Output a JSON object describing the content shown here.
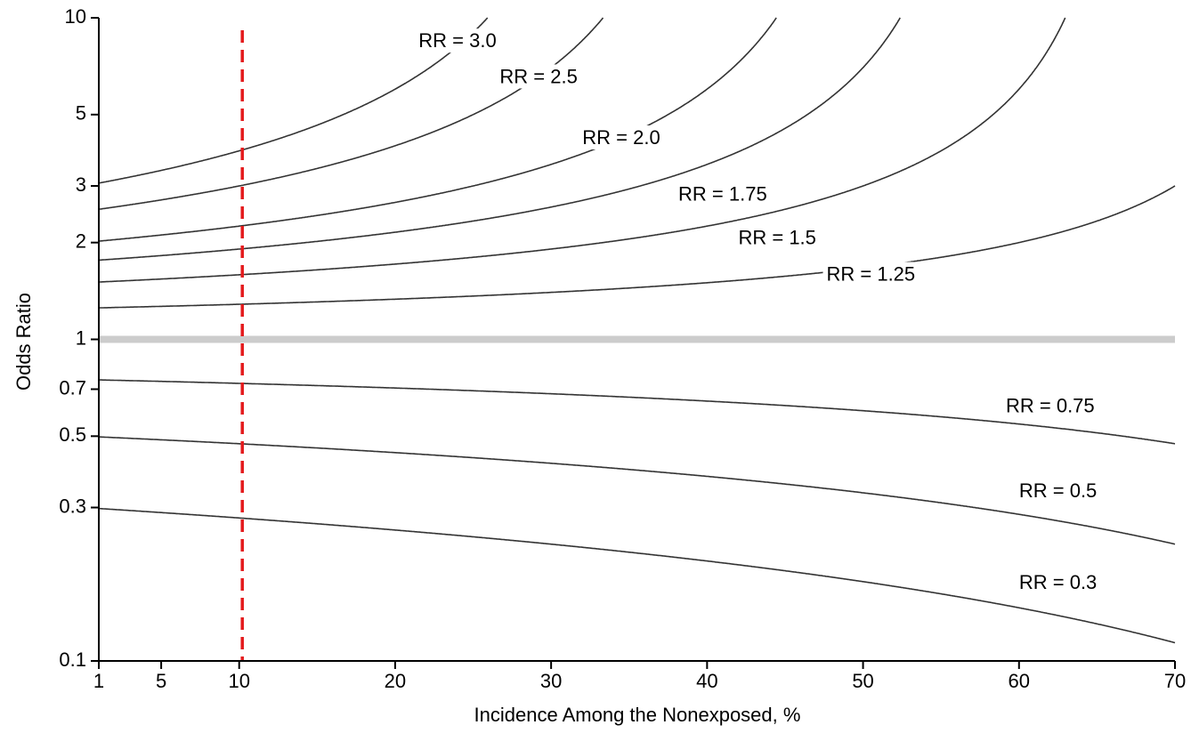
{
  "chart_data": {
    "type": "line",
    "title": "",
    "xlabel": "Incidence Among the Nonexposed, %",
    "ylabel": "Odds Ratio",
    "xlim": [
      1,
      70
    ],
    "ylim": [
      0.1,
      10
    ],
    "yscale": "log",
    "x_ticks": [
      1,
      5,
      10,
      20,
      30,
      40,
      50,
      60,
      70
    ],
    "y_ticks": [
      0.1,
      0.3,
      0.5,
      0.7,
      1,
      2,
      3,
      5,
      10
    ],
    "y_tick_labels": [
      "0.1",
      "0.3",
      "0.5",
      "0.7",
      "1",
      "2",
      "3",
      "5",
      "10"
    ],
    "grid": false,
    "legend": "none (curves labeled directly)",
    "series": [
      {
        "name": "RR = 3.0",
        "rr": 3.0,
        "x": [
          1,
          5,
          10,
          15,
          20,
          25,
          26.5
        ],
        "y": [
          3.06,
          3.35,
          3.86,
          4.6,
          5.67,
          8.0,
          10
        ]
      },
      {
        "name": "RR = 2.5",
        "rr": 2.5,
        "x": [
          1,
          5,
          10,
          20,
          30,
          33.5
        ],
        "y": [
          2.54,
          2.71,
          3.0,
          3.86,
          6.0,
          10
        ]
      },
      {
        "name": "RR = 2.0",
        "rr": 2.0,
        "x": [
          1,
          10,
          20,
          30,
          40,
          44.5
        ],
        "y": [
          2.02,
          2.25,
          2.67,
          3.5,
          6.0,
          10
        ]
      },
      {
        "name": "RR = 1.75",
        "rr": 1.75,
        "x": [
          1,
          10,
          20,
          30,
          40,
          50,
          52.5
        ],
        "y": [
          1.76,
          1.91,
          2.15,
          2.55,
          3.35,
          6.25,
          10
        ]
      },
      {
        "name": "RR = 1.5",
        "rr": 1.5,
        "x": [
          1,
          10,
          20,
          30,
          40,
          50,
          60,
          63.5
        ],
        "y": [
          1.51,
          1.59,
          1.71,
          1.91,
          2.25,
          3.0,
          6.0,
          10
        ]
      },
      {
        "name": "RR = 1.25",
        "rr": 1.25,
        "x": [
          1,
          10,
          20,
          30,
          40,
          50,
          60,
          70
        ],
        "y": [
          1.25,
          1.28,
          1.33,
          1.39,
          1.5,
          1.67,
          2.0,
          3.0
        ]
      },
      {
        "name": "RR = 0.75",
        "rr": 0.75,
        "x": [
          1,
          10,
          20,
          30,
          40,
          50,
          60,
          70
        ],
        "y": [
          0.75,
          0.73,
          0.71,
          0.68,
          0.64,
          0.6,
          0.55,
          0.48
        ]
      },
      {
        "name": "RR = 0.5",
        "rr": 0.5,
        "x": [
          1,
          10,
          20,
          30,
          40,
          50,
          60,
          70
        ],
        "y": [
          0.5,
          0.47,
          0.44,
          0.41,
          0.38,
          0.33,
          0.29,
          0.23
        ]
      },
      {
        "name": "RR = 0.3",
        "rr": 0.3,
        "x": [
          1,
          10,
          20,
          30,
          40,
          50,
          60,
          70
        ],
        "y": [
          0.3,
          0.28,
          0.26,
          0.23,
          0.21,
          0.18,
          0.15,
          0.11
        ]
      }
    ],
    "curve_labels": [
      {
        "text": "RR = 3.0",
        "x": 24.0,
        "y": 8.4
      },
      {
        "text": "RR = 2.5",
        "x": 29.2,
        "y": 6.5
      },
      {
        "text": "RR = 2.0",
        "x": 34.5,
        "y": 4.2
      },
      {
        "text": "RR = 1.75",
        "x": 41.0,
        "y": 2.8
      },
      {
        "text": "RR = 1.5",
        "x": 44.5,
        "y": 2.05
      },
      {
        "text": "RR = 1.25",
        "x": 50.5,
        "y": 1.58
      },
      {
        "text": "RR = 0.75",
        "x": 62.0,
        "y": 0.615
      },
      {
        "text": "RR = 0.5",
        "x": 62.5,
        "y": 0.335
      },
      {
        "text": "RR = 0.3",
        "x": 62.5,
        "y": 0.174
      }
    ],
    "reference_lines": {
      "null_odds_ratio": {
        "y": 1,
        "color": "#cccccc"
      },
      "marked_incidence": {
        "x": 10.2,
        "color": "#e41a1c",
        "style": "dashed"
      }
    },
    "colors": {
      "curves": "#333333",
      "axis": "#000000"
    }
  }
}
